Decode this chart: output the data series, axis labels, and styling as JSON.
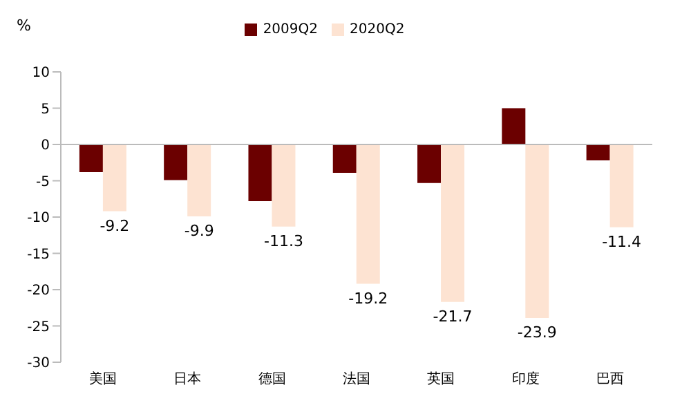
{
  "chart_data": {
    "type": "bar",
    "ylabel": "%",
    "categories": [
      "美国",
      "日本",
      "德国",
      "法国",
      "英国",
      "印度",
      "巴西"
    ],
    "series": [
      {
        "name": "2009Q2",
        "color": "#6b0000",
        "values": [
          -3.8,
          -4.9,
          -7.8,
          -3.9,
          -5.3,
          5.0,
          -2.2
        ]
      },
      {
        "name": "2020Q2",
        "color": "#fde3d2",
        "values": [
          -9.2,
          -9.9,
          -11.3,
          -19.2,
          -21.7,
          -23.9,
          -11.4
        ],
        "value_labels": [
          "-9.2",
          "-9.9",
          "-11.3",
          "-19.2",
          "-21.7",
          "-23.9",
          "-11.4"
        ]
      }
    ],
    "ylim": [
      -30,
      10
    ],
    "yticks": [
      -30,
      -25,
      -20,
      -15,
      -10,
      -5,
      0,
      5,
      10
    ],
    "legend": "top",
    "ref_lines": [
      {
        "axis": "y",
        "value": 0,
        "color": "#bbbbbb"
      }
    ]
  }
}
